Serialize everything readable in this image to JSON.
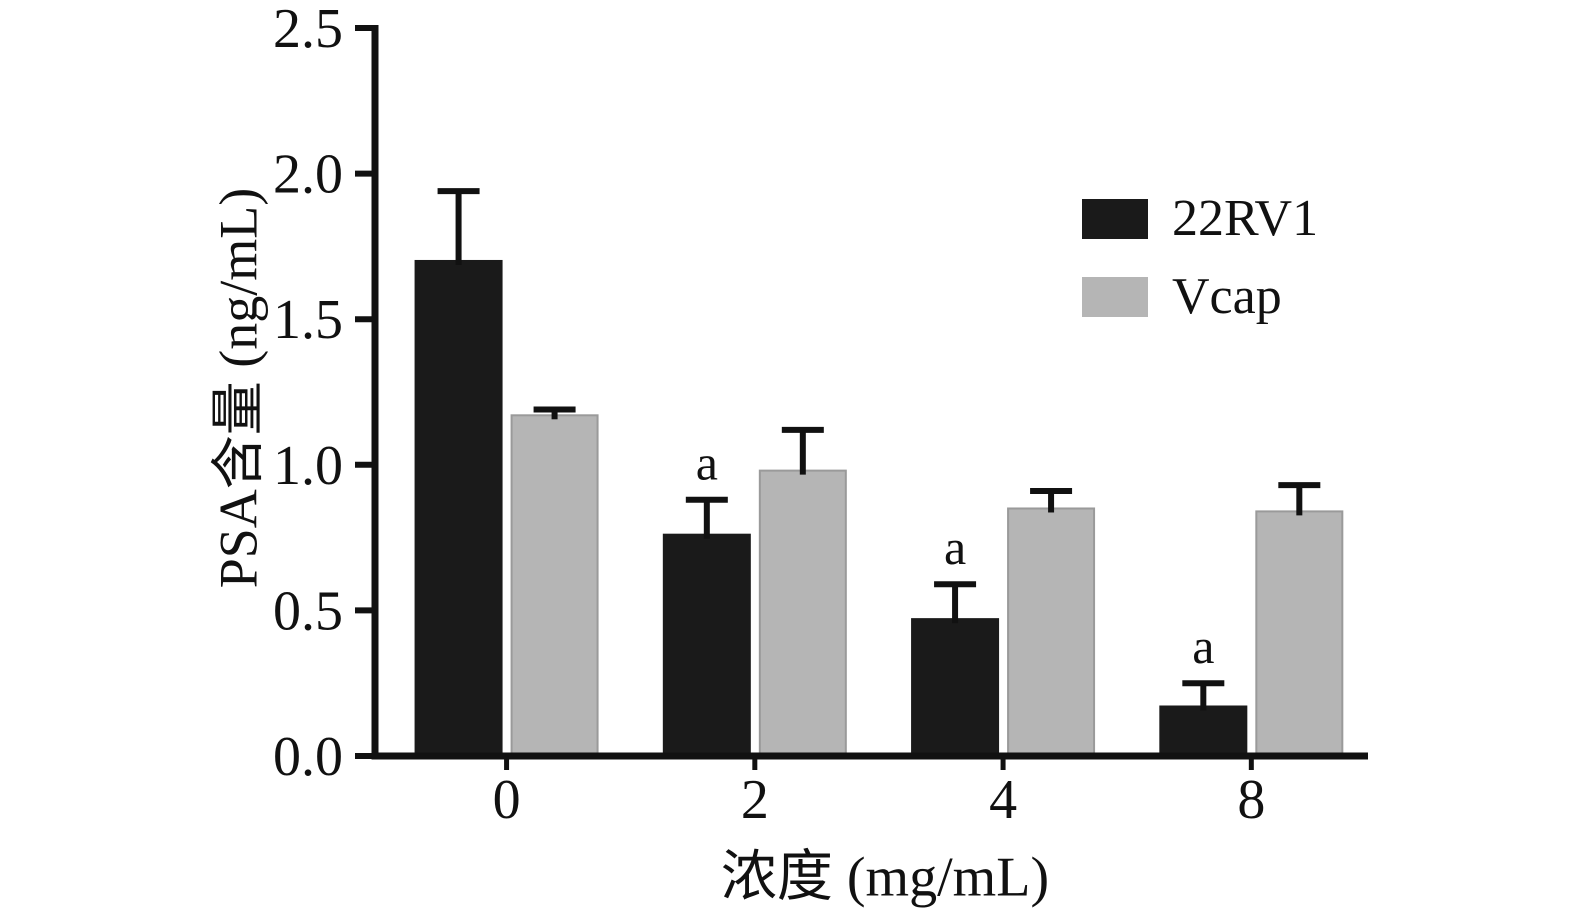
{
  "chart_data": {
    "type": "bar",
    "title": "",
    "xlabel": "浓度 (mg/mL)",
    "ylabel": "PSA含量 (ng/mL)",
    "categories": [
      "0",
      "2",
      "4",
      "8"
    ],
    "series": [
      {
        "name": "22RV1",
        "color": "#1a1a1a",
        "values": [
          1.7,
          0.76,
          0.47,
          0.17
        ],
        "errors": [
          0.24,
          0.12,
          0.12,
          0.08
        ],
        "annotations": [
          "",
          "a",
          "a",
          "a"
        ]
      },
      {
        "name": "Vcap",
        "color": "#b5b5b5",
        "values": [
          1.17,
          0.98,
          0.85,
          0.84
        ],
        "errors": [
          0.02,
          0.14,
          0.06,
          0.09
        ],
        "annotations": [
          "",
          "",
          "",
          ""
        ]
      }
    ],
    "ylim": [
      0,
      2.5
    ],
    "yticks": [
      "0.0",
      "0.5",
      "1.0",
      "1.5",
      "2.0",
      "2.5"
    ],
    "legend_position": "upper-right",
    "grid": false,
    "axis_color": "#111111",
    "error_bar_color": "#111111"
  }
}
